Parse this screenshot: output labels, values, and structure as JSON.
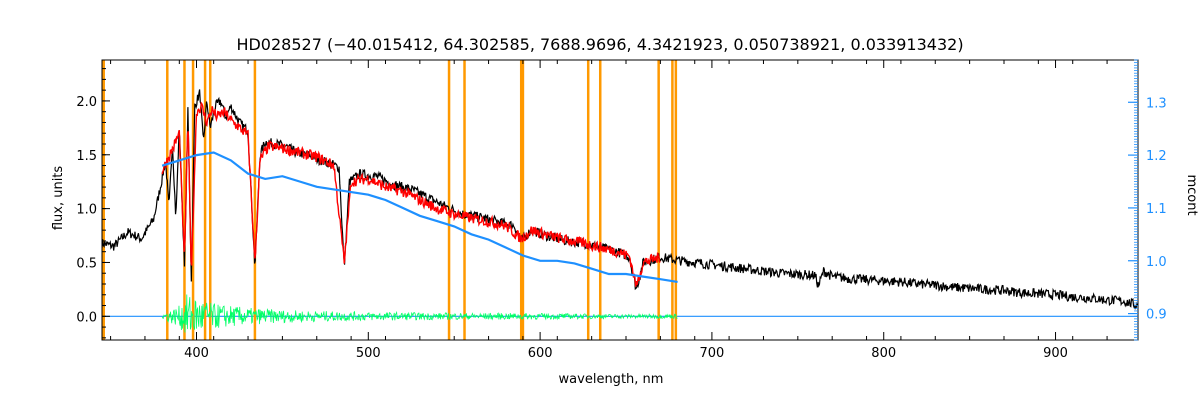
{
  "colors": {
    "background": "#ffffff",
    "axes": "#000000",
    "observed": "#000000",
    "model": "#ff0000",
    "continuum": "#1e90ff",
    "residual": "#00ff66",
    "masks": "#ff9900"
  },
  "chart_data": {
    "type": "line",
    "title": "HD028527    (−40.015412, 64.302585, 7688.9696, 4.3421923, 0.050738921, 0.033913432)",
    "xlabel": "wavelength, nm",
    "ylabel": "flux, units",
    "ylabel_right": "mcont",
    "xlim": [
      345,
      948
    ],
    "ylim": [
      -0.22,
      2.38
    ],
    "ylim_right": [
      0.85,
      1.38
    ],
    "x_ticks": [
      400,
      500,
      600,
      700,
      800,
      900
    ],
    "x_tick_labels": [
      "400",
      "500",
      "600",
      "700",
      "800",
      "900"
    ],
    "y_ticks": [
      0.0,
      0.5,
      1.0,
      1.5,
      2.0
    ],
    "y_tick_labels": [
      "0.0",
      "0.5",
      "1.0",
      "1.5",
      "2.0"
    ],
    "y_ticks_right": [
      0.9,
      1.0,
      1.1,
      1.2,
      1.3
    ],
    "y_tick_labels_right": [
      "0.9",
      "1.0",
      "1.1",
      "1.2",
      "1.3"
    ],
    "grid": false,
    "series": [
      {
        "key": "observed",
        "style": "line",
        "x": [
          345,
          352,
          360,
          368,
          375,
          379,
          382,
          384,
          386,
          388,
          390,
          393,
          395,
          397,
          399,
          402,
          404,
          406,
          408,
          411,
          414,
          417,
          420,
          425,
          430,
          434,
          437,
          440,
          446,
          452,
          458,
          465,
          472,
          478,
          483,
          486,
          489,
          495,
          505,
          515,
          525,
          535,
          545,
          555,
          565,
          575,
          585,
          589,
          595,
          605,
          615,
          625,
          635,
          645,
          652,
          656,
          660,
          670,
          680,
          690,
          700,
          710,
          720,
          730,
          740,
          750,
          760,
          762,
          765,
          770,
          780,
          790,
          800,
          810,
          820,
          830,
          840,
          850,
          860,
          870,
          880,
          890,
          900,
          910,
          920,
          930,
          940,
          948
        ],
        "y": [
          0.68,
          0.65,
          0.78,
          0.72,
          0.9,
          1.2,
          1.45,
          1.0,
          1.62,
          0.9,
          1.78,
          0.45,
          1.9,
          0.35,
          1.95,
          2.08,
          1.6,
          2.0,
          1.75,
          1.95,
          2.0,
          1.85,
          1.95,
          1.8,
          1.72,
          0.45,
          1.5,
          1.62,
          1.6,
          1.58,
          1.52,
          1.5,
          1.45,
          1.42,
          1.38,
          0.45,
          1.25,
          1.32,
          1.3,
          1.22,
          1.18,
          1.1,
          1.02,
          0.95,
          0.92,
          0.88,
          0.84,
          0.7,
          0.8,
          0.74,
          0.7,
          0.68,
          0.64,
          0.6,
          0.55,
          0.25,
          0.5,
          0.55,
          0.52,
          0.5,
          0.48,
          0.46,
          0.44,
          0.42,
          0.4,
          0.39,
          0.38,
          0.28,
          0.42,
          0.37,
          0.35,
          0.34,
          0.33,
          0.32,
          0.3,
          0.29,
          0.27,
          0.26,
          0.25,
          0.24,
          0.22,
          0.21,
          0.2,
          0.18,
          0.17,
          0.15,
          0.14,
          0.1
        ]
      },
      {
        "key": "model",
        "style": "line",
        "x": [
          380,
          386,
          390,
          393,
          395,
          397,
          400,
          403,
          406,
          409,
          412,
          416,
          420,
          425,
          430,
          434,
          437,
          442,
          450,
          460,
          470,
          480,
          486,
          490,
          500,
          510,
          520,
          530,
          540,
          550,
          560,
          570,
          580,
          589,
          595,
          605,
          615,
          625,
          635,
          645,
          652,
          656,
          660,
          670
        ],
        "y": [
          1.35,
          1.55,
          1.7,
          0.5,
          1.85,
          0.4,
          1.9,
          1.95,
          1.8,
          1.92,
          1.85,
          1.9,
          1.82,
          1.75,
          1.68,
          0.5,
          1.45,
          1.58,
          1.56,
          1.52,
          1.48,
          1.4,
          0.5,
          1.25,
          1.28,
          1.2,
          1.16,
          1.08,
          1.0,
          0.95,
          0.91,
          0.88,
          0.84,
          0.72,
          0.8,
          0.75,
          0.71,
          0.68,
          0.64,
          0.6,
          0.56,
          0.28,
          0.5,
          0.55
        ]
      },
      {
        "key": "continuum",
        "style": "line",
        "x": [
          380,
          390,
          400,
          410,
          420,
          430,
          440,
          450,
          460,
          470,
          480,
          490,
          500,
          510,
          520,
          530,
          540,
          550,
          560,
          570,
          580,
          590,
          600,
          610,
          620,
          630,
          640,
          650,
          660,
          670,
          680
        ],
        "y": [
          1.18,
          1.19,
          1.2,
          1.205,
          1.19,
          1.165,
          1.155,
          1.16,
          1.15,
          1.14,
          1.135,
          1.13,
          1.125,
          1.115,
          1.1,
          1.085,
          1.075,
          1.065,
          1.05,
          1.04,
          1.025,
          1.01,
          1.0,
          1.0,
          0.995,
          0.985,
          0.975,
          0.975,
          0.97,
          0.965,
          0.96
        ]
      },
      {
        "key": "residual",
        "style": "noise",
        "x": [
          380,
          390,
          395,
          400,
          405,
          410,
          420,
          430,
          440,
          450,
          470,
          500,
          530,
          560,
          590,
          620,
          650,
          680
        ],
        "y": [
          0.03,
          0.1,
          0.22,
          0.18,
          0.15,
          0.12,
          0.1,
          0.08,
          0.07,
          0.06,
          0.05,
          0.04,
          0.035,
          0.03,
          0.03,
          0.025,
          0.02,
          0.02
        ]
      }
    ],
    "baseline_y": 0.0,
    "mask_lines": [
      346,
      383,
      393,
      398,
      405,
      408,
      434,
      547,
      556,
      589,
      590,
      628,
      635,
      669,
      677,
      679
    ],
    "right_axis_tick_color": "#1e90ff"
  }
}
